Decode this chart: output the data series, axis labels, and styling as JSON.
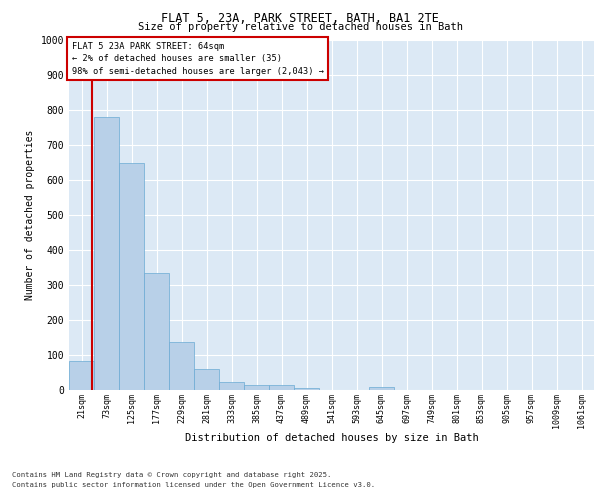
{
  "title_line1": "FLAT 5, 23A, PARK STREET, BATH, BA1 2TE",
  "title_line2": "Size of property relative to detached houses in Bath",
  "xlabel": "Distribution of detached houses by size in Bath",
  "ylabel": "Number of detached properties",
  "bar_labels": [
    "21sqm",
    "73sqm",
    "125sqm",
    "177sqm",
    "229sqm",
    "281sqm",
    "333sqm",
    "385sqm",
    "437sqm",
    "489sqm",
    "541sqm",
    "593sqm",
    "645sqm",
    "697sqm",
    "749sqm",
    "801sqm",
    "853sqm",
    "905sqm",
    "957sqm",
    "1009sqm",
    "1061sqm"
  ],
  "bar_values": [
    83,
    780,
    648,
    335,
    136,
    60,
    22,
    15,
    13,
    7,
    0,
    0,
    8,
    0,
    0,
    0,
    0,
    0,
    0,
    0,
    0
  ],
  "bar_color": "#b8d0e8",
  "bar_edge_color": "#6aaad4",
  "annotation_title": "FLAT 5 23A PARK STREET: 64sqm",
  "annotation_line2": "← 2% of detached houses are smaller (35)",
  "annotation_line3": "98% of semi-detached houses are larger (2,043) →",
  "annotation_box_color": "#ffffff",
  "annotation_box_edge": "#cc0000",
  "vline_color": "#cc0000",
  "vline_x": 0.425,
  "ylim": [
    0,
    1000
  ],
  "yticks": [
    0,
    100,
    200,
    300,
    400,
    500,
    600,
    700,
    800,
    900,
    1000
  ],
  "footer_line1": "Contains HM Land Registry data © Crown copyright and database right 2025.",
  "footer_line2": "Contains public sector information licensed under the Open Government Licence v3.0.",
  "plot_bg_color": "#dce9f5",
  "fig_bg_color": "#ffffff",
  "grid_color": "#ffffff"
}
